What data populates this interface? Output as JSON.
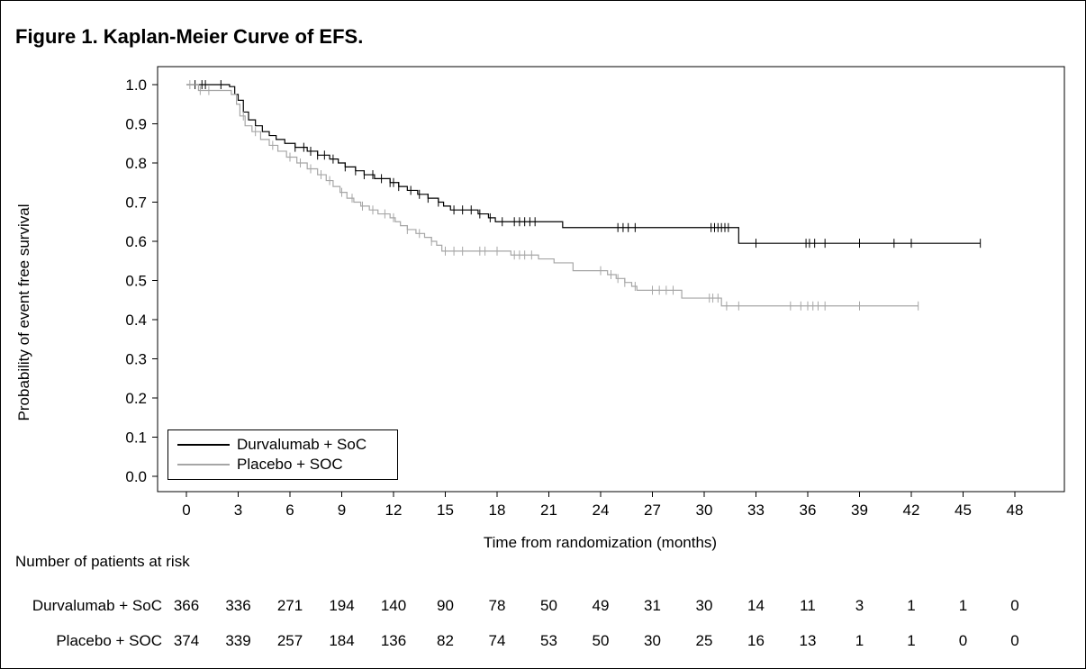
{
  "title": "Figure 1. Kaplan-Meier Curve of EFS.",
  "chart_data": {
    "type": "line",
    "subtype": "kaplan-meier",
    "title": "Figure 1. Kaplan-Meier Curve of EFS.",
    "xlabel": "Time from randomization (months)",
    "ylabel": "Probability of event free survival",
    "xlim": [
      0,
      48
    ],
    "ylim": [
      0.0,
      1.0
    ],
    "xticks": [
      0,
      3,
      6,
      9,
      12,
      15,
      18,
      21,
      24,
      27,
      30,
      33,
      36,
      39,
      42,
      45,
      48
    ],
    "yticks": [
      "0.0",
      "0.1",
      "0.2",
      "0.3",
      "0.4",
      "0.5",
      "0.6",
      "0.7",
      "0.8",
      "0.9",
      "1.0"
    ],
    "grid": false,
    "legend_position": "bottom-left",
    "series": [
      {
        "name": "Durvalumab + SoC",
        "color": "#000000",
        "steps": [
          [
            0,
            1.0
          ],
          [
            2.5,
            0.995
          ],
          [
            2.8,
            0.975
          ],
          [
            3.0,
            0.96
          ],
          [
            3.3,
            0.93
          ],
          [
            3.6,
            0.91
          ],
          [
            4.0,
            0.895
          ],
          [
            4.4,
            0.88
          ],
          [
            4.8,
            0.87
          ],
          [
            5.2,
            0.86
          ],
          [
            5.7,
            0.85
          ],
          [
            6.3,
            0.84
          ],
          [
            7.0,
            0.83
          ],
          [
            7.6,
            0.82
          ],
          [
            8.3,
            0.81
          ],
          [
            8.8,
            0.8
          ],
          [
            9.2,
            0.79
          ],
          [
            9.8,
            0.78
          ],
          [
            10.3,
            0.77
          ],
          [
            10.9,
            0.76
          ],
          [
            11.8,
            0.75
          ],
          [
            12.3,
            0.74
          ],
          [
            12.8,
            0.73
          ],
          [
            13.4,
            0.72
          ],
          [
            14.0,
            0.71
          ],
          [
            14.6,
            0.7
          ],
          [
            14.9,
            0.69
          ],
          [
            15.3,
            0.68
          ],
          [
            16.9,
            0.67
          ],
          [
            17.5,
            0.66
          ],
          [
            17.9,
            0.65
          ],
          [
            21.8,
            0.635
          ],
          [
            32.0,
            0.595
          ],
          [
            46.0,
            0.595
          ]
        ],
        "censor": [
          0.5,
          0.9,
          1.1,
          2.0,
          6.3,
          6.8,
          7.2,
          7.6,
          8.0,
          8.5,
          9.2,
          9.8,
          10.3,
          10.8,
          11.3,
          11.8,
          12.0,
          12.3,
          13.0,
          13.5,
          14.0,
          14.6,
          15.5,
          16.0,
          16.5,
          17.0,
          17.6,
          18.3,
          19.0,
          19.3,
          19.6,
          19.9,
          20.2,
          25.0,
          25.3,
          25.6,
          26.0,
          30.4,
          30.6,
          30.8,
          31.0,
          31.2,
          31.4,
          33.0,
          35.9,
          36.1,
          36.4,
          37.0,
          39.0,
          41.0,
          42.0,
          46.0
        ]
      },
      {
        "name": "Placebo + SOC",
        "color": "#a6a6a6",
        "steps": [
          [
            0,
            1.0
          ],
          [
            0.7,
            0.985
          ],
          [
            2.6,
            0.975
          ],
          [
            2.9,
            0.95
          ],
          [
            3.1,
            0.92
          ],
          [
            3.4,
            0.895
          ],
          [
            3.8,
            0.88
          ],
          [
            4.3,
            0.86
          ],
          [
            4.8,
            0.845
          ],
          [
            5.3,
            0.83
          ],
          [
            5.8,
            0.815
          ],
          [
            6.4,
            0.8
          ],
          [
            7.0,
            0.785
          ],
          [
            7.6,
            0.77
          ],
          [
            8.1,
            0.755
          ],
          [
            8.5,
            0.74
          ],
          [
            8.9,
            0.725
          ],
          [
            9.3,
            0.71
          ],
          [
            9.7,
            0.7
          ],
          [
            10.1,
            0.69
          ],
          [
            10.6,
            0.68
          ],
          [
            11.1,
            0.67
          ],
          [
            11.8,
            0.66
          ],
          [
            12.1,
            0.65
          ],
          [
            12.4,
            0.64
          ],
          [
            12.8,
            0.63
          ],
          [
            13.3,
            0.62
          ],
          [
            13.8,
            0.61
          ],
          [
            14.2,
            0.6
          ],
          [
            14.5,
            0.59
          ],
          [
            14.8,
            0.575
          ],
          [
            18.8,
            0.565
          ],
          [
            20.4,
            0.555
          ],
          [
            21.3,
            0.545
          ],
          [
            22.4,
            0.525
          ],
          [
            24.4,
            0.515
          ],
          [
            24.9,
            0.505
          ],
          [
            25.4,
            0.495
          ],
          [
            25.8,
            0.485
          ],
          [
            26.1,
            0.475
          ],
          [
            28.7,
            0.455
          ],
          [
            31.0,
            0.435
          ],
          [
            42.4,
            0.435
          ]
        ],
        "censor": [
          0.2,
          0.8,
          1.3,
          3.3,
          4.0,
          5.0,
          6.0,
          6.6,
          7.2,
          7.8,
          8.3,
          9.0,
          9.6,
          10.2,
          10.8,
          11.5,
          12.0,
          12.8,
          13.5,
          14.2,
          15.0,
          15.5,
          16.0,
          17.0,
          17.3,
          18.0,
          19.0,
          19.3,
          19.6,
          20.0,
          24.0,
          24.6,
          25.0,
          25.4,
          26.0,
          27.0,
          27.4,
          27.8,
          28.2,
          30.3,
          30.5,
          30.8,
          31.3,
          32.0,
          35.0,
          35.6,
          36.0,
          36.3,
          36.6,
          37.0,
          39.0,
          42.4
        ]
      }
    ]
  },
  "risk_table": {
    "title": "Number of patients at risk",
    "rows": [
      {
        "label": "Durvalumab + SoC",
        "values": [
          "366",
          "336",
          "271",
          "194",
          "140",
          "90",
          "78",
          "50",
          "49",
          "31",
          "30",
          "14",
          "11",
          "3",
          "1",
          "1",
          "0"
        ]
      },
      {
        "label": "Placebo + SOC",
        "values": [
          "374",
          "339",
          "257",
          "184",
          "136",
          "82",
          "74",
          "53",
          "50",
          "30",
          "25",
          "16",
          "13",
          "1",
          "1",
          "0",
          "0"
        ]
      }
    ]
  }
}
